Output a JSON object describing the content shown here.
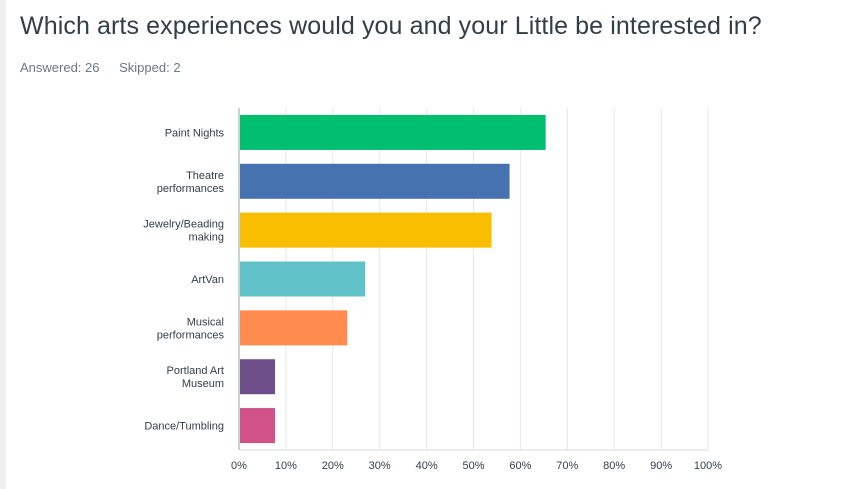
{
  "survey": {
    "question": "Which arts experiences would you and your Little be interested in?",
    "answered_label": "Answered: 26",
    "skipped_label": "Skipped: 2"
  },
  "chart_data": {
    "type": "bar",
    "orientation": "horizontal",
    "categories": [
      [
        "Paint Nights"
      ],
      [
        "Theatre",
        "performances"
      ],
      [
        "Jewelry/Beading",
        "making"
      ],
      [
        "ArtVan"
      ],
      [
        "Musical",
        "performances"
      ],
      [
        "Portland Art",
        "Museum"
      ],
      [
        "Dance/Tumbling"
      ]
    ],
    "values": [
      65.38,
      57.69,
      53.85,
      26.92,
      23.08,
      7.69,
      7.69
    ],
    "colors": [
      "#00bf6f",
      "#4772b0",
      "#f9be00",
      "#60c2c8",
      "#ff8b4f",
      "#6e4f8a",
      "#d15289"
    ],
    "xlim": [
      0,
      100
    ],
    "xticks": [
      "0%",
      "10%",
      "20%",
      "30%",
      "40%",
      "50%",
      "60%",
      "70%",
      "80%",
      "90%",
      "100%"
    ],
    "grid": true,
    "title": "",
    "xlabel": "",
    "ylabel": ""
  }
}
